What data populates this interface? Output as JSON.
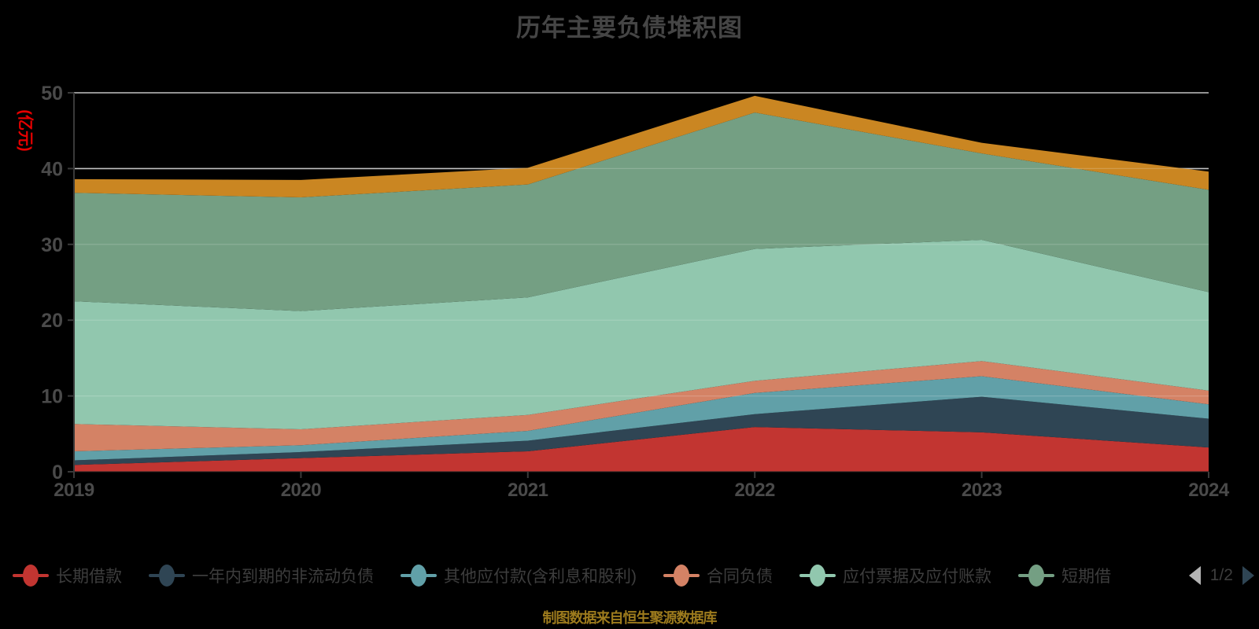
{
  "title": "历年主要负债堆积图",
  "y_axis": {
    "name": "(亿元)",
    "name_color": "#e60000",
    "tick_labels": [
      "0",
      "10",
      "20",
      "30",
      "40",
      "50"
    ],
    "ticks": [
      0,
      10,
      20,
      30,
      40,
      50
    ]
  },
  "chart_data": {
    "type": "area",
    "stacked": true,
    "title": "历年主要负债堆积图",
    "ylabel": "(亿元)",
    "ylim": [
      0,
      50
    ],
    "grid": true,
    "legend_position": "bottom",
    "x": [
      "2019",
      "2020",
      "2021",
      "2022",
      "2023",
      "2024"
    ],
    "series": [
      {
        "id": "long-term-borrowings",
        "name": "长期借款",
        "color": "#c23531",
        "values": [
          0.9,
          1.8,
          2.7,
          5.9,
          5.2,
          3.2
        ]
      },
      {
        "id": "non-current-liabilities-due-within-one-year",
        "name": "一年内到期的非流动负债",
        "color": "#2f4554",
        "values": [
          0.6,
          0.8,
          1.4,
          1.7,
          4.7,
          3.8
        ]
      },
      {
        "id": "other-payables-incl-interest-and-dividends",
        "name": "其他应付款(含利息和股利)",
        "color": "#61a0a8",
        "values": [
          1.2,
          0.9,
          1.3,
          2.8,
          2.7,
          1.9
        ]
      },
      {
        "id": "contract-liabilities",
        "name": "合同负债",
        "color": "#d48265",
        "values": [
          3.6,
          2.1,
          2.1,
          1.6,
          2.0,
          1.8
        ]
      },
      {
        "id": "notes-and-accounts-payable",
        "name": "应付票据及应付账款",
        "color": "#91c7ae",
        "values": [
          16.2,
          15.6,
          15.5,
          17.4,
          16.0,
          13.0
        ]
      },
      {
        "id": "short-term-borrowings",
        "name": "短期借",
        "color": "#749f83",
        "values": [
          14.3,
          15.0,
          14.9,
          18.0,
          11.4,
          13.5
        ]
      },
      {
        "id": "series-7-unlabeled",
        "name": "",
        "color": "#ca8622",
        "values": [
          1.8,
          2.3,
          2.2,
          2.2,
          1.4,
          2.4
        ]
      }
    ],
    "stack_totals": [
      38.6,
      38.5,
      40.1,
      49.6,
      43.4,
      39.6
    ]
  },
  "legend": {
    "items": [
      {
        "label": "长期借款",
        "color": "#c23531"
      },
      {
        "label": "一年内到期的非流动负债",
        "color": "#2f4554"
      },
      {
        "label": "其他应付款(含利息和股利)",
        "color": "#61a0a8"
      },
      {
        "label": "合同负债",
        "color": "#d48265"
      },
      {
        "label": "应付票据及应付账款",
        "color": "#91c7ae"
      },
      {
        "label": "短期借",
        "color": "#749f83"
      }
    ],
    "pager": {
      "text": "1/2",
      "prev_color": "#b3b3b3",
      "next_color": "#2f4554"
    }
  },
  "footer": {
    "text": "制图数据来自恒生聚源数据库",
    "color": "#9d7b1d"
  }
}
